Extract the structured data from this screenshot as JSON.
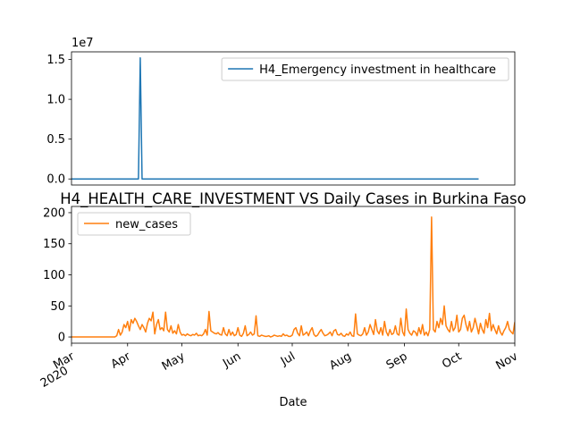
{
  "chart_data": [
    {
      "type": "line",
      "offset_text": "1e7",
      "xlim": [
        0,
        245
      ],
      "ylim": [
        -0.076,
        1.596
      ],
      "yticks": [
        {
          "value": 0,
          "label": "0.0"
        },
        {
          "value": 0.5,
          "label": "0.5"
        },
        {
          "value": 1,
          "label": "1.0"
        },
        {
          "value": 1.5,
          "label": "1.5"
        }
      ],
      "legend": "upper right",
      "series": [
        {
          "name": "H4_Emergency investment in healthcare",
          "color": "#1f77b4",
          "values": [
            0,
            0,
            0,
            0,
            0,
            0,
            0,
            0,
            0,
            0,
            0,
            0,
            0,
            0,
            0,
            0,
            0,
            0,
            0,
            0,
            0,
            0,
            0,
            0,
            0,
            0,
            0,
            0,
            0,
            0,
            0,
            0,
            0,
            0,
            0,
            0,
            0,
            0,
            1.52,
            0,
            0,
            0,
            0,
            0,
            0,
            0,
            0,
            0,
            0,
            0,
            0,
            0,
            0,
            0,
            0,
            0,
            0,
            0,
            0,
            0,
            0,
            0,
            0,
            0,
            0,
            0,
            0,
            0,
            0,
            0,
            0,
            0,
            0,
            0,
            0,
            0,
            0,
            0,
            0,
            0,
            0,
            0,
            0,
            0,
            0,
            0,
            0,
            0,
            0,
            0,
            0,
            0,
            0,
            0,
            0,
            0,
            0,
            0,
            0,
            0,
            0,
            0,
            0,
            0,
            0,
            0,
            0,
            0,
            0,
            0,
            0,
            0,
            0,
            0,
            0,
            0,
            0,
            0,
            0,
            0,
            0,
            0,
            0,
            0,
            0,
            0,
            0,
            0,
            0,
            0,
            0,
            0,
            0,
            0,
            0,
            0,
            0,
            0,
            0,
            0,
            0,
            0,
            0,
            0,
            0,
            0,
            0,
            0,
            0,
            0,
            0,
            0,
            0,
            0,
            0,
            0,
            0,
            0,
            0,
            0,
            0,
            0,
            0,
            0,
            0,
            0,
            0,
            0,
            0,
            0,
            0,
            0,
            0,
            0,
            0,
            0,
            0,
            0,
            0,
            0,
            0,
            0,
            0,
            0,
            0,
            0,
            0,
            0,
            0,
            0,
            0,
            0,
            0,
            0,
            0,
            0,
            0,
            0,
            0,
            0,
            0,
            0,
            0,
            0,
            0,
            0,
            0,
            0,
            0,
            0,
            0,
            0,
            0,
            0,
            0,
            0,
            0,
            0,
            0,
            0,
            0,
            0,
            0,
            0,
            0,
            0
          ]
        }
      ]
    },
    {
      "type": "line",
      "title": "H4_HEALTH_CARE_INVESTMENT VS Daily Cases in Burkina Faso",
      "x_label": "Date",
      "xlim": [
        0,
        245
      ],
      "xticks": [
        {
          "value": 0,
          "label": "Mar"
        },
        {
          "value": 31,
          "label": "Apr"
        },
        {
          "value": 61,
          "label": "May"
        },
        {
          "value": 92,
          "label": "Jun"
        },
        {
          "value": 122,
          "label": "Jul"
        },
        {
          "value": 153,
          "label": "Aug"
        },
        {
          "value": 184,
          "label": "Sep"
        },
        {
          "value": 214,
          "label": "Oct"
        },
        {
          "value": 245,
          "label": "Nov"
        }
      ],
      "xtick_year": "2020",
      "ylim": [
        -10,
        210
      ],
      "yticks": [
        0,
        50,
        100,
        150,
        200
      ],
      "legend": "upper left",
      "series": [
        {
          "name": "new_cases",
          "color": "#ff7f0e",
          "values": [
            0,
            0,
            0,
            0,
            0,
            0,
            0,
            0,
            0,
            0,
            0,
            0,
            0,
            0,
            0,
            0,
            0,
            0,
            0,
            0,
            0,
            0,
            0,
            0,
            0,
            2,
            12,
            3,
            8,
            20,
            15,
            25,
            10,
            28,
            22,
            30,
            25,
            18,
            12,
            20,
            15,
            8,
            22,
            30,
            26,
            40,
            5,
            20,
            28,
            12,
            15,
            10,
            40,
            12,
            8,
            18,
            6,
            10,
            5,
            20,
            8,
            3,
            4,
            2,
            5,
            3,
            2,
            4,
            3,
            6,
            2,
            3,
            2,
            5,
            12,
            3,
            41,
            10,
            8,
            6,
            5,
            7,
            4,
            3,
            15,
            5,
            2,
            12,
            3,
            8,
            2,
            4,
            15,
            3,
            1,
            6,
            18,
            2,
            4,
            8,
            3,
            5,
            34,
            2,
            1,
            3,
            2,
            1,
            1,
            2,
            0,
            1,
            3,
            2,
            1,
            2,
            1,
            5,
            2,
            3,
            1,
            1,
            3,
            12,
            15,
            6,
            2,
            18,
            3,
            5,
            8,
            2,
            10,
            15,
            4,
            1,
            3,
            8,
            12,
            6,
            2,
            3,
            5,
            8,
            2,
            10,
            12,
            4,
            3,
            6,
            2,
            1,
            5,
            3,
            8,
            2,
            1,
            37,
            5,
            3,
            2,
            5,
            15,
            3,
            8,
            20,
            12,
            4,
            28,
            10,
            5,
            15,
            3,
            25,
            8,
            2,
            12,
            4,
            6,
            18,
            5,
            3,
            30,
            8,
            2,
            45,
            12,
            6,
            3,
            10,
            8,
            2,
            15,
            5,
            20,
            3,
            8,
            2,
            12,
            193,
            12,
            8,
            25,
            15,
            30,
            20,
            50,
            18,
            12,
            8,
            25,
            10,
            15,
            35,
            8,
            12,
            30,
            35,
            20,
            10,
            25,
            8,
            15,
            30,
            18,
            5,
            22,
            12,
            6,
            28,
            15,
            38,
            10,
            20,
            12,
            5,
            18,
            8,
            3,
            10,
            15,
            25,
            12,
            8,
            5,
            24
          ]
        }
      ]
    }
  ]
}
